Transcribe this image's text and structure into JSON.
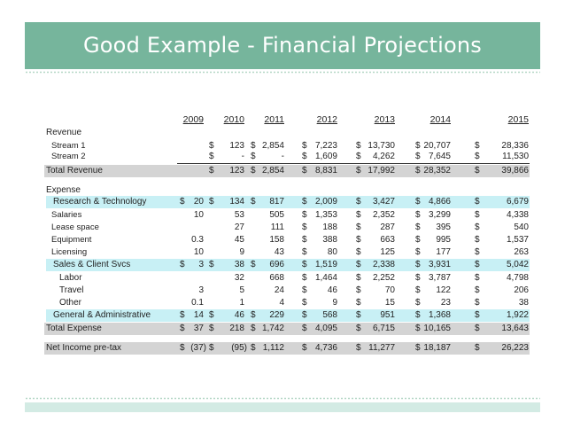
{
  "slide": {
    "title": "Good Example - Financial Projections"
  },
  "years": [
    "2009",
    "2010",
    "2011",
    "2012",
    "2013",
    "2014",
    "2015"
  ],
  "rows": [
    {
      "label": "Revenue",
      "style": "section",
      "cells": []
    },
    {
      "label": "Stream 1",
      "style": "sub",
      "cells": [
        {
          "col": 1,
          "d": "$",
          "v": "123"
        },
        {
          "col": 2,
          "d": "$",
          "v": "2,854"
        },
        {
          "col": 3,
          "d": "$",
          "v": "7,223"
        },
        {
          "col": 4,
          "d": "$",
          "v": "13,730"
        },
        {
          "col": 5,
          "d": "$",
          "v": "20,707"
        },
        {
          "col": 6,
          "d": "$",
          "v": "28,336"
        }
      ]
    },
    {
      "label": "Stream 2",
      "style": "sub",
      "cells": [
        {
          "col": 1,
          "d": "$",
          "v": "-"
        },
        {
          "col": 2,
          "d": "$",
          "v": "-"
        },
        {
          "col": 3,
          "d": "$",
          "v": "1,609"
        },
        {
          "col": 4,
          "d": "$",
          "v": "4,262"
        },
        {
          "col": 5,
          "d": "$",
          "v": "7,645"
        },
        {
          "col": 6,
          "d": "$",
          "v": "11,530"
        }
      ]
    },
    {
      "label": "Total Revenue",
      "style": "total",
      "cells": [
        {
          "col": 1,
          "d": "$",
          "v": "123"
        },
        {
          "col": 2,
          "d": "$",
          "v": "2,854"
        },
        {
          "col": 3,
          "d": "$",
          "v": "8,831"
        },
        {
          "col": 4,
          "d": "$",
          "v": "17,992"
        },
        {
          "col": 5,
          "d": "$",
          "v": "28,352"
        },
        {
          "col": 6,
          "d": "$",
          "v": "39,866"
        }
      ]
    },
    {
      "label": "Expense",
      "style": "section",
      "cells": []
    },
    {
      "label": "Research & Technology",
      "style": "blue",
      "cells": [
        {
          "col": 0,
          "d": "$",
          "v": "20"
        },
        {
          "col": 1,
          "d": "$",
          "v": "134"
        },
        {
          "col": 2,
          "d": "$",
          "v": "817"
        },
        {
          "col": 3,
          "d": "$",
          "v": "2,009"
        },
        {
          "col": 4,
          "d": "$",
          "v": "3,427"
        },
        {
          "col": 5,
          "d": "$",
          "v": "4,866"
        },
        {
          "col": 6,
          "d": "$",
          "v": "6,679"
        }
      ]
    },
    {
      "label": "Salaries",
      "style": "sub",
      "cells": [
        {
          "col": 0,
          "v": "10"
        },
        {
          "col": 1,
          "v": "53"
        },
        {
          "col": 2,
          "v": "505"
        },
        {
          "col": 3,
          "d": "$",
          "v": "1,353"
        },
        {
          "col": 4,
          "d": "$",
          "v": "2,352"
        },
        {
          "col": 5,
          "d": "$",
          "v": "3,299"
        },
        {
          "col": 6,
          "d": "$",
          "v": "4,338"
        }
      ]
    },
    {
      "label": "Lease space",
      "style": "sub",
      "cells": [
        {
          "col": 1,
          "v": "27"
        },
        {
          "col": 2,
          "v": "111"
        },
        {
          "col": 3,
          "d": "$",
          "v": "188"
        },
        {
          "col": 4,
          "d": "$",
          "v": "287"
        },
        {
          "col": 5,
          "d": "$",
          "v": "395"
        },
        {
          "col": 6,
          "d": "$",
          "v": "540"
        }
      ]
    },
    {
      "label": "Equipment",
      "style": "sub",
      "cells": [
        {
          "col": 0,
          "v": "0.3"
        },
        {
          "col": 1,
          "v": "45"
        },
        {
          "col": 2,
          "v": "158"
        },
        {
          "col": 3,
          "d": "$",
          "v": "388"
        },
        {
          "col": 4,
          "d": "$",
          "v": "663"
        },
        {
          "col": 5,
          "d": "$",
          "v": "995"
        },
        {
          "col": 6,
          "d": "$",
          "v": "1,537"
        }
      ]
    },
    {
      "label": "Licensing",
      "style": "sub",
      "cells": [
        {
          "col": 0,
          "v": "10"
        },
        {
          "col": 1,
          "v": "9"
        },
        {
          "col": 2,
          "v": "43"
        },
        {
          "col": 3,
          "d": "$",
          "v": "80"
        },
        {
          "col": 4,
          "d": "$",
          "v": "125"
        },
        {
          "col": 5,
          "d": "$",
          "v": "177"
        },
        {
          "col": 6,
          "d": "$",
          "v": "263"
        }
      ]
    },
    {
      "label": "Sales & Client Svcs",
      "style": "blue",
      "cells": [
        {
          "col": 0,
          "d": "$",
          "v": "3"
        },
        {
          "col": 1,
          "d": "$",
          "v": "38"
        },
        {
          "col": 2,
          "d": "$",
          "v": "696"
        },
        {
          "col": 3,
          "d": "$",
          "v": "1,519"
        },
        {
          "col": 4,
          "d": "$",
          "v": "2,338"
        },
        {
          "col": 5,
          "d": "$",
          "v": "3,931"
        },
        {
          "col": 6,
          "d": "$",
          "v": "5,042"
        }
      ]
    },
    {
      "label": "Labor",
      "style": "indent",
      "cells": [
        {
          "col": 1,
          "v": "32"
        },
        {
          "col": 2,
          "v": "668"
        },
        {
          "col": 3,
          "d": "$",
          "v": "1,464"
        },
        {
          "col": 4,
          "d": "$",
          "v": "2,252"
        },
        {
          "col": 5,
          "d": "$",
          "v": "3,787"
        },
        {
          "col": 6,
          "d": "$",
          "v": "4,798"
        }
      ]
    },
    {
      "label": "Travel",
      "style": "indent",
      "cells": [
        {
          "col": 0,
          "v": "3"
        },
        {
          "col": 1,
          "v": "5"
        },
        {
          "col": 2,
          "v": "24"
        },
        {
          "col": 3,
          "d": "$",
          "v": "46"
        },
        {
          "col": 4,
          "d": "$",
          "v": "70"
        },
        {
          "col": 5,
          "d": "$",
          "v": "122"
        },
        {
          "col": 6,
          "d": "$",
          "v": "206"
        }
      ]
    },
    {
      "label": "Other",
      "style": "indent",
      "cells": [
        {
          "col": 0,
          "v": "0.1"
        },
        {
          "col": 1,
          "v": "1"
        },
        {
          "col": 2,
          "v": "4"
        },
        {
          "col": 3,
          "d": "$",
          "v": "9"
        },
        {
          "col": 4,
          "d": "$",
          "v": "15"
        },
        {
          "col": 5,
          "d": "$",
          "v": "23"
        },
        {
          "col": 6,
          "d": "$",
          "v": "38"
        }
      ]
    },
    {
      "label": "General & Administrative",
      "style": "blue",
      "cells": [
        {
          "col": 0,
          "d": "$",
          "v": "14"
        },
        {
          "col": 1,
          "d": "$",
          "v": "46"
        },
        {
          "col": 2,
          "d": "$",
          "v": "229"
        },
        {
          "col": 3,
          "d": "$",
          "v": "568"
        },
        {
          "col": 4,
          "d": "$",
          "v": "951"
        },
        {
          "col": 5,
          "d": "$",
          "v": "1,368"
        },
        {
          "col": 6,
          "d": "$",
          "v": "1,922"
        }
      ]
    },
    {
      "label": "Total Expense",
      "style": "total",
      "cells": [
        {
          "col": 0,
          "d": "$",
          "v": "37"
        },
        {
          "col": 1,
          "d": "$",
          "v": "218"
        },
        {
          "col": 2,
          "d": "$",
          "v": "1,742"
        },
        {
          "col": 3,
          "d": "$",
          "v": "4,095"
        },
        {
          "col": 4,
          "d": "$",
          "v": "6,715"
        },
        {
          "col": 5,
          "d": "$",
          "v": "10,165"
        },
        {
          "col": 6,
          "d": "$",
          "v": "13,643"
        }
      ]
    },
    {
      "label": "Net Income pre-tax",
      "style": "net",
      "cells": [
        {
          "col": 0,
          "d": "$",
          "v": "(37)"
        },
        {
          "col": 1,
          "d": "$",
          "v": "(95)"
        },
        {
          "col": 2,
          "d": "$",
          "v": "1,112"
        },
        {
          "col": 3,
          "d": "$",
          "v": "4,736"
        },
        {
          "col": 4,
          "d": "$",
          "v": "11,277"
        },
        {
          "col": 5,
          "d": "$",
          "v": "18,187"
        },
        {
          "col": 6,
          "d": "$",
          "v": "26,223"
        }
      ]
    }
  ]
}
